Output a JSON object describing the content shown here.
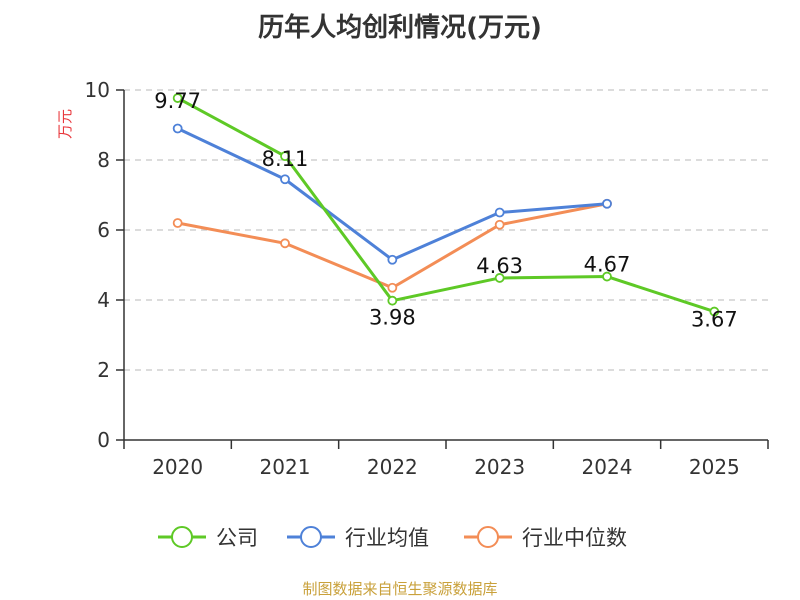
{
  "chart_data": {
    "type": "line",
    "title": "历年人均创利情况(万元)",
    "ylabel": "万元",
    "xlabel": "",
    "ylim": [
      0,
      10
    ],
    "yticks": [
      "0",
      "2",
      "4",
      "6",
      "8",
      "10"
    ],
    "categories": [
      "2020",
      "2021",
      "2022",
      "2023",
      "2024",
      "2025"
    ],
    "grid": true,
    "legend": "bottom",
    "series": [
      {
        "name": "公司",
        "color": "#5ec926",
        "values": [
          9.77,
          8.11,
          3.98,
          4.63,
          4.67,
          3.67
        ],
        "labels": [
          "9.77",
          "8.11",
          "3.98",
          "4.63",
          "4.67",
          "3.67"
        ]
      },
      {
        "name": "行业均值",
        "color": "#4e81d8",
        "values": [
          8.9,
          7.45,
          5.15,
          6.5,
          6.75,
          null
        ]
      },
      {
        "name": "行业中位数",
        "color": "#f38d56",
        "values": [
          6.2,
          5.62,
          4.35,
          6.15,
          6.75,
          null
        ]
      }
    ]
  },
  "footer": {
    "source": "制图数据来自恒生聚源数据库"
  }
}
